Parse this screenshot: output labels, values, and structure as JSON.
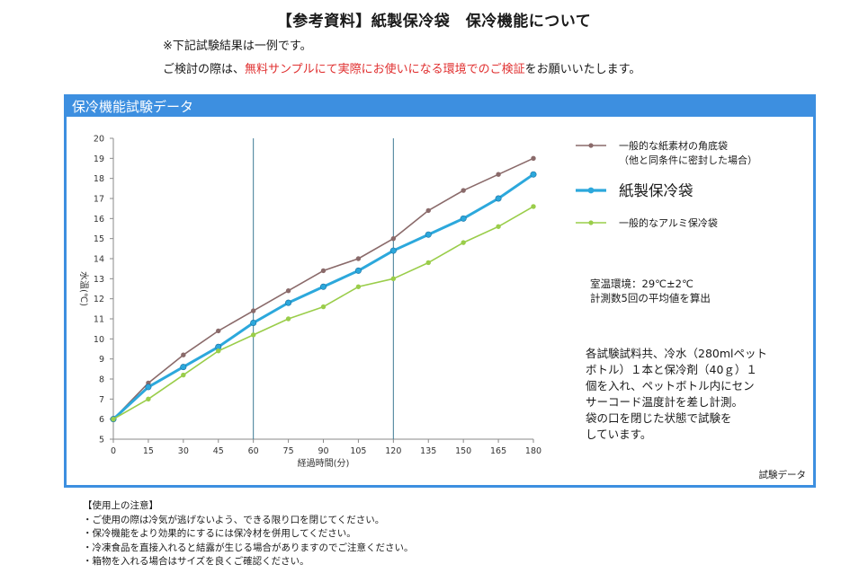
{
  "header": {
    "title": "【参考資料】紙製保冷袋　保冷機能について",
    "note": "※下記試験結果は一例です。",
    "notice_prefix": "ご検討の際は、",
    "notice_highlight": "無料サンプルにて実際にお使いになる環境でのご検証",
    "notice_suffix": "をお願いいたします。",
    "highlight_color": "#e03030"
  },
  "panel": {
    "title": "保冷機能試験データ",
    "footer_label": "試験データ",
    "accent_color": "#3d8fe0"
  },
  "test_conditions": {
    "line1": "室温環境：29℃±2℃",
    "line2": "計測数5回の平均値を算出"
  },
  "test_method": {
    "lines": [
      "各試験試料共、冷水（280mlペット",
      "ボトル）１本と保冷剤（40ｇ）１",
      "個を入れ、ペットボトル内にセン",
      "サーコード温度計を差し計測。",
      "袋の口を閉じた状態で試験を",
      "しています。"
    ]
  },
  "chart_data": {
    "type": "line",
    "x": [
      0,
      15,
      30,
      45,
      60,
      75,
      90,
      105,
      120,
      135,
      150,
      165,
      180
    ],
    "xlabel": "経過時間(分)",
    "ylabel": "水温(℃)",
    "xlim": [
      0,
      180
    ],
    "ylim": [
      5,
      20
    ],
    "y_ticks": [
      5,
      6,
      7,
      8,
      9,
      10,
      11,
      12,
      13,
      14,
      15,
      16,
      17,
      18,
      19,
      20
    ],
    "vertical_reference_lines": [
      60,
      120
    ],
    "grid": false,
    "legend_position": "right",
    "series": [
      {
        "name_line1": "一般的な紙素材の角底袋",
        "name_line2": "（他と同条件に密封した場合）",
        "color": "#8a6a6a",
        "emphasis": false,
        "values": [
          6.0,
          7.8,
          9.2,
          10.4,
          11.4,
          12.4,
          13.4,
          14.0,
          15.0,
          16.4,
          17.4,
          18.2,
          19.0
        ]
      },
      {
        "name": "紙製保冷袋",
        "color": "#2ca8dc",
        "emphasis": true,
        "values": [
          6.0,
          7.6,
          8.6,
          9.6,
          10.8,
          11.8,
          12.6,
          13.4,
          14.4,
          15.2,
          16.0,
          17.0,
          18.2
        ]
      },
      {
        "name": "一般的なアルミ保冷袋",
        "color": "#9acd4a",
        "emphasis": false,
        "values": [
          6.0,
          7.0,
          8.2,
          9.4,
          10.2,
          11.0,
          11.6,
          12.6,
          13.0,
          13.8,
          14.8,
          15.6,
          16.6
        ]
      }
    ]
  },
  "cautions": {
    "heading": "【使用上の注意】",
    "items": [
      "ご使用の際は冷気が逃げないよう、できる限り口を閉じてください。",
      "保冷機能をより効果的にするには保冷材を併用してください。",
      "冷凍食品を直接入れると結露が生じる場合がありますのでご注意ください。",
      "箱物を入れる場合はサイズを良くご確認ください。"
    ]
  }
}
